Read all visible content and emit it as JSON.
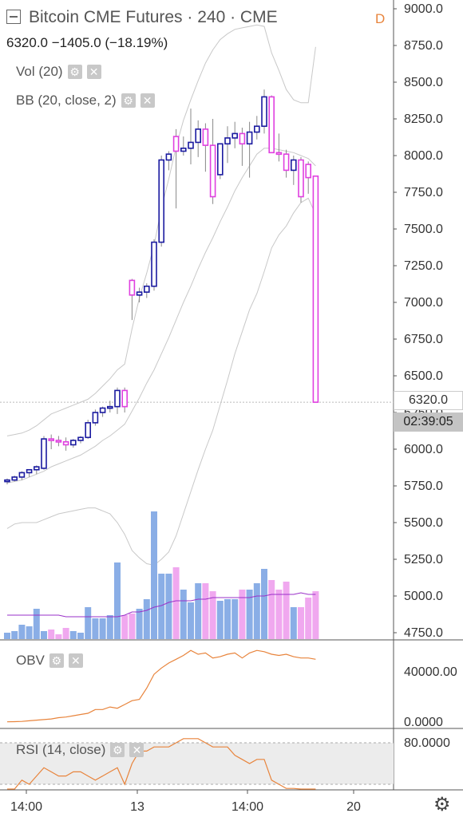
{
  "header": {
    "title": "Bitcoin CME Futures · 240 · CME",
    "flag": "D",
    "change": "6320.0  −1405.0 (−18.19%)"
  },
  "indicators": {
    "vol": "Vol (20)",
    "bb": "BB (20, close, 2)",
    "obv": "OBV",
    "rsi": "RSI (14, close)"
  },
  "price_labels": {
    "last": "6320.0",
    "countdown": "02:39:05"
  },
  "colors": {
    "up": "#1a1aa0",
    "down": "#e040e0",
    "vol_up": "#8aaee6",
    "vol_down": "#f0a8ef",
    "bb": "#c8c8c8",
    "vol_ma": "#9a30c8",
    "obv": "#e8843c",
    "rsi": "#e8843c"
  },
  "chart_data": [
    {
      "type": "candlestick",
      "title": "Bitcoin CME Futures · 240 · CME",
      "ylim": [
        4700,
        9000
      ],
      "y_ticks": [
        "4750.0",
        "5000.0",
        "5250.0",
        "5500.0",
        "5750.0",
        "6000.0",
        "6250.0",
        "6500.0",
        "6750.0",
        "7000.0",
        "7250.0",
        "7500.0",
        "7750.0",
        "8000.0",
        "8250.0",
        "8500.0",
        "8750.0",
        "9000.0"
      ],
      "x_ticks": [
        "14:00",
        "13",
        "14:00",
        "20"
      ],
      "candles": [
        {
          "o": 5780,
          "h": 5800,
          "l": 5760,
          "c": 5790
        },
        {
          "o": 5790,
          "h": 5820,
          "l": 5780,
          "c": 5810
        },
        {
          "o": 5810,
          "h": 5850,
          "l": 5790,
          "c": 5840
        },
        {
          "o": 5840,
          "h": 5860,
          "l": 5810,
          "c": 5860
        },
        {
          "o": 5860,
          "h": 5890,
          "l": 5830,
          "c": 5880
        },
        {
          "o": 5870,
          "h": 6090,
          "l": 5860,
          "c": 6070
        },
        {
          "o": 6070,
          "h": 6100,
          "l": 6000,
          "c": 6060
        },
        {
          "o": 6060,
          "h": 6090,
          "l": 6020,
          "c": 6050
        },
        {
          "o": 6050,
          "h": 6080,
          "l": 5990,
          "c": 6030
        },
        {
          "o": 6030,
          "h": 6070,
          "l": 6010,
          "c": 6060
        },
        {
          "o": 6060,
          "h": 6090,
          "l": 6040,
          "c": 6080
        },
        {
          "o": 6080,
          "h": 6200,
          "l": 6070,
          "c": 6180
        },
        {
          "o": 6180,
          "h": 6270,
          "l": 6160,
          "c": 6250
        },
        {
          "o": 6250,
          "h": 6290,
          "l": 6220,
          "c": 6280
        },
        {
          "o": 6280,
          "h": 6330,
          "l": 6250,
          "c": 6290
        },
        {
          "o": 6290,
          "h": 6420,
          "l": 6240,
          "c": 6400
        },
        {
          "o": 6400,
          "h": 6420,
          "l": 6250,
          "c": 6290
        },
        {
          "o": 7150,
          "h": 7160,
          "l": 6880,
          "c": 7050
        },
        {
          "o": 7050,
          "h": 7100,
          "l": 7000,
          "c": 7070
        },
        {
          "o": 7070,
          "h": 7130,
          "l": 7030,
          "c": 7110
        },
        {
          "o": 7110,
          "h": 7430,
          "l": 7080,
          "c": 7410
        },
        {
          "o": 7410,
          "h": 8000,
          "l": 7380,
          "c": 7970
        },
        {
          "o": 7970,
          "h": 8030,
          "l": 7900,
          "c": 8010
        },
        {
          "o": 8130,
          "h": 8180,
          "l": 7640,
          "c": 8030
        },
        {
          "o": 8030,
          "h": 8130,
          "l": 8000,
          "c": 8050
        },
        {
          "o": 8050,
          "h": 8320,
          "l": 7940,
          "c": 8090
        },
        {
          "o": 8090,
          "h": 8240,
          "l": 7990,
          "c": 8180
        },
        {
          "o": 8180,
          "h": 8220,
          "l": 7890,
          "c": 8070
        },
        {
          "o": 8070,
          "h": 8250,
          "l": 7670,
          "c": 7720
        },
        {
          "o": 7870,
          "h": 8080,
          "l": 7840,
          "c": 8080
        },
        {
          "o": 8080,
          "h": 8200,
          "l": 7950,
          "c": 8120
        },
        {
          "o": 8120,
          "h": 8230,
          "l": 8050,
          "c": 8150
        },
        {
          "o": 8150,
          "h": 8190,
          "l": 7930,
          "c": 8080
        },
        {
          "o": 8080,
          "h": 8230,
          "l": 7850,
          "c": 8160
        },
        {
          "o": 8160,
          "h": 8270,
          "l": 8110,
          "c": 8200
        },
        {
          "o": 8200,
          "h": 8450,
          "l": 8150,
          "c": 8400
        },
        {
          "o": 8400,
          "h": 8410,
          "l": 8020,
          "c": 8020
        },
        {
          "o": 8020,
          "h": 8150,
          "l": 7960,
          "c": 8010
        },
        {
          "o": 8010,
          "h": 8040,
          "l": 7850,
          "c": 7900
        },
        {
          "o": 7900,
          "h": 8000,
          "l": 7800,
          "c": 7970
        },
        {
          "o": 7970,
          "h": 7990,
          "l": 7680,
          "c": 7720
        },
        {
          "o": 7940,
          "h": 7960,
          "l": 7740,
          "c": 7850
        },
        {
          "o": 7860,
          "h": 7860,
          "l": 6320,
          "c": 6320
        }
      ],
      "bb_upper": [
        6090,
        6100,
        6110,
        6130,
        6160,
        6200,
        6240,
        6260,
        6280,
        6300,
        6320,
        6340,
        6380,
        6430,
        6480,
        6540,
        6580,
        6820,
        7030,
        7200,
        7390,
        7640,
        7840,
        8060,
        8240,
        8380,
        8510,
        8630,
        8720,
        8790,
        8830,
        8860,
        8870,
        8880,
        8890,
        8880,
        8700,
        8580,
        8450,
        8380,
        8360,
        8360,
        8740
      ],
      "bb_mid": [
        5770,
        5780,
        5790,
        5810,
        5830,
        5850,
        5880,
        5900,
        5920,
        5940,
        5960,
        5990,
        6020,
        6060,
        6090,
        6130,
        6170,
        6260,
        6350,
        6450,
        6540,
        6650,
        6760,
        6880,
        7000,
        7110,
        7230,
        7340,
        7440,
        7550,
        7650,
        7760,
        7850,
        7930,
        8010,
        8050,
        8050,
        8040,
        8030,
        8020,
        8000,
        7980,
        7930
      ],
      "bb_lower": [
        5460,
        5490,
        5500,
        5500,
        5500,
        5520,
        5540,
        5560,
        5570,
        5580,
        5590,
        5600,
        5600,
        5580,
        5560,
        5500,
        5420,
        5310,
        5260,
        5220,
        5210,
        5250,
        5300,
        5410,
        5560,
        5710,
        5860,
        6000,
        6130,
        6300,
        6470,
        6650,
        6800,
        6950,
        7060,
        7210,
        7370,
        7460,
        7520,
        7610,
        7680,
        7710,
        7600
      ],
      "volume": [
        4,
        5,
        9,
        8,
        19,
        5,
        6,
        3,
        7,
        5,
        4,
        20,
        13,
        13,
        15,
        48,
        15,
        16,
        19,
        25,
        80,
        41,
        41,
        45,
        31,
        23,
        35,
        35,
        30,
        24,
        25,
        25,
        31,
        31,
        35,
        44,
        37,
        31,
        36,
        20,
        20,
        26,
        30
      ],
      "vol_ma": [
        15,
        15,
        15,
        15,
        15,
        15,
        15,
        15,
        14,
        14,
        14,
        14,
        14,
        14,
        14,
        14,
        15,
        17,
        17,
        18,
        20,
        21,
        23,
        24,
        24,
        24,
        25,
        25,
        26,
        26,
        26,
        26,
        26,
        26,
        27,
        27,
        28,
        28,
        28,
        28,
        29,
        28,
        28
      ],
      "vol_ylim": [
        0,
        100
      ]
    },
    {
      "type": "line",
      "title": "OBV",
      "ylim": [
        0,
        60000
      ],
      "y_ticks": [
        "0.0000",
        "40000.00"
      ],
      "values": [
        200,
        300,
        500,
        1000,
        1500,
        2000,
        2500,
        3500,
        4000,
        5000,
        6000,
        7000,
        10000,
        10000,
        12000,
        11000,
        14000,
        17000,
        18000,
        27000,
        38000,
        43000,
        47000,
        50000,
        53000,
        57000,
        54000,
        55000,
        51000,
        52000,
        54000,
        55000,
        51000,
        55000,
        57000,
        56000,
        54000,
        53000,
        54000,
        52000,
        51000,
        51000,
        50000
      ]
    },
    {
      "type": "line",
      "title": "RSI (14, close)",
      "ylim": [
        50,
        90
      ],
      "y_ticks": [
        "80.0000"
      ],
      "values": [
        66,
        68,
        71,
        70,
        72,
        74,
        73,
        72,
        72,
        73,
        73,
        72,
        71,
        72,
        73,
        74,
        70,
        75,
        78,
        78,
        79,
        79,
        79,
        80,
        81,
        81,
        81,
        80,
        79,
        79,
        79,
        77,
        76,
        75,
        76,
        76,
        71,
        70,
        69,
        69,
        68,
        65,
        53
      ]
    }
  ]
}
